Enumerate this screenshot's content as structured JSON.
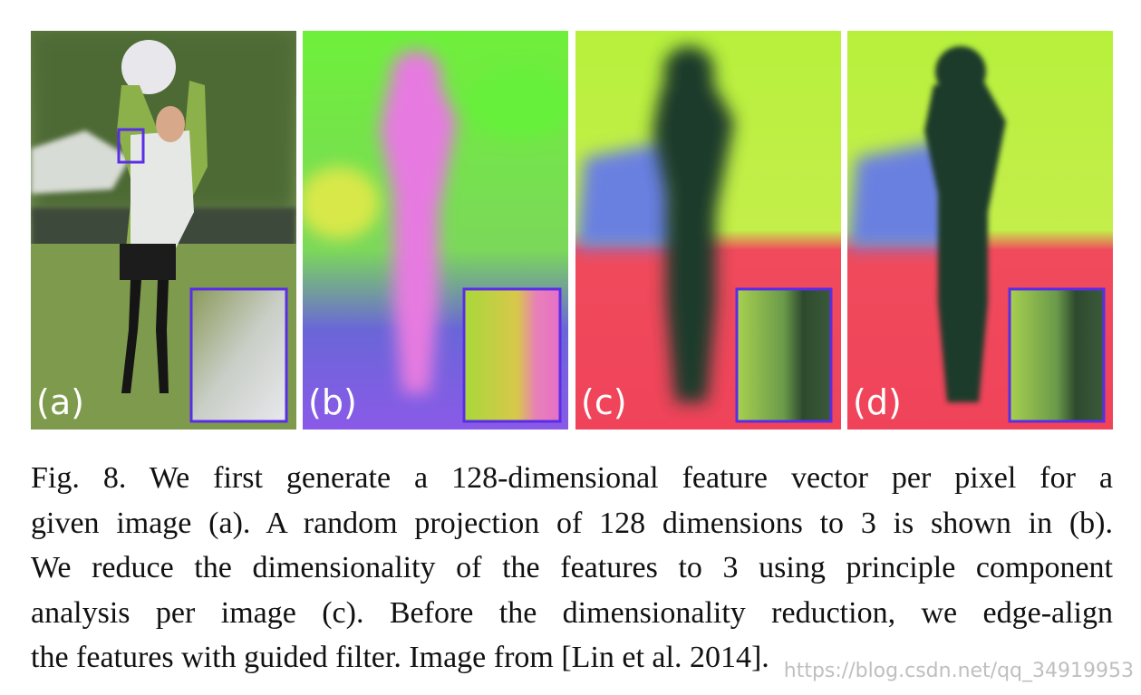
{
  "panels": [
    "(a)",
    "(b)",
    "(c)",
    "(d)"
  ],
  "caption": [
    "Fig. 8.  We first generate a 128-dimensional feature vector per pixel for a",
    "given image (a). A random projection of 128 dimensions to 3 is shown in (b).",
    "We reduce the dimensionality of the features to 3 using principle component",
    "analysis per image (c). Before the dimensionality reduction, we edge-align",
    "the features with guided filter. Image from [Lin et al. 2014]."
  ],
  "watermark": "https://blog.csdn.net/qq_34919953"
}
